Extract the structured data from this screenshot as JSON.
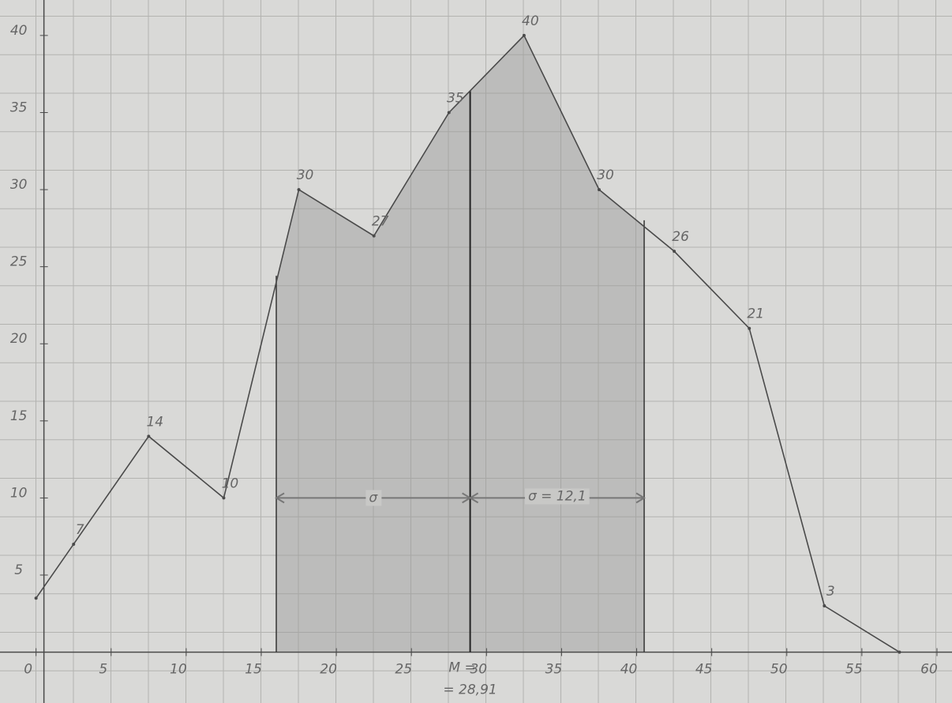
{
  "chart_data": {
    "type": "line",
    "x": [
      0,
      2.5,
      7.5,
      12.5,
      17.5,
      22.5,
      27.5,
      32.5,
      37.5,
      42.5,
      47.5,
      52.5,
      57.5
    ],
    "values": [
      3.5,
      7,
      14,
      10,
      30,
      27,
      35,
      40,
      30,
      26,
      21,
      3,
      0
    ],
    "value_labels": [
      null,
      "7",
      "14",
      "10",
      "30",
      "27",
      "35",
      "40",
      "30",
      "26",
      "21",
      "3",
      null
    ],
    "color": "#4a4a4a",
    "xlim": [
      -2.4,
      61
    ],
    "ylim": [
      -3.3,
      42.3
    ],
    "xticks": [
      0,
      5,
      10,
      15,
      20,
      25,
      30,
      35,
      40,
      45,
      50,
      55,
      60
    ],
    "yticks": [
      5,
      10,
      15,
      20,
      25,
      30,
      35,
      40
    ],
    "shaded_range": [
      16,
      40.5
    ],
    "shade_color": "#9a9a9a",
    "mean_line": {
      "value": 28.91,
      "label": "= 28,91"
    },
    "mean_symbol": "M =",
    "sigma_symbol": "σ",
    "sigma": {
      "value": 12.1,
      "label": "σ = 12,1"
    },
    "arrow_level": 10
  }
}
